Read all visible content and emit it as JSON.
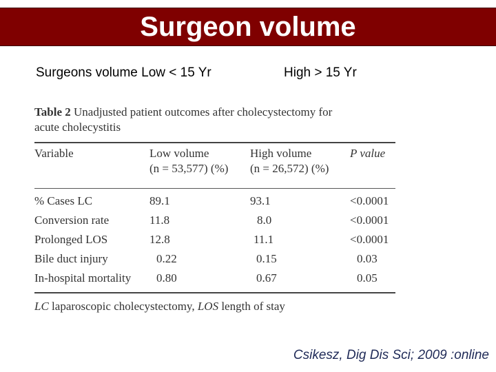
{
  "title": "Surgeon volume",
  "subtitle_left": "Surgeons volume  Low < 15 Yr",
  "subtitle_right": "High > 15 Yr",
  "table": {
    "label": "Table 2",
    "caption_line1": "Unadjusted patient outcomes after cholecystectomy for",
    "caption_line2": "acute cholecystitis",
    "headers": {
      "variable": "Variable",
      "low_title": "Low volume",
      "low_n": "(n = 53,577) (%)",
      "high_title": "High volume",
      "high_n": "(n = 26,572) (%)",
      "p_value": "P value"
    },
    "rows": [
      {
        "variable": "% Cases LC",
        "low": "89.1",
        "high": "93.1",
        "p": "<0.0001"
      },
      {
        "variable": "Conversion rate",
        "low": "11.8",
        "high": "8.0",
        "p": "<0.0001"
      },
      {
        "variable": "Prolonged LOS",
        "low": "12.8",
        "high": "11.1",
        "p": "<0.0001"
      },
      {
        "variable": "Bile duct injury",
        "low": "0.22",
        "high": "0.15",
        "p": "0.03"
      },
      {
        "variable": "In-hospital mortality",
        "low": "0.80",
        "high": "0.67",
        "p": "0.05"
      }
    ],
    "footnote": {
      "lc_abbr": "LC",
      "lc_text": " laparoscopic cholecystectomy, ",
      "los_abbr": "LOS",
      "los_text": " length of stay"
    }
  },
  "citation": "Csikesz, Dig Dis Sci; 2009 :online",
  "colors": {
    "title_bar": "#7f0000",
    "title_text": "#ffffff",
    "citation": "#1f2a57"
  }
}
